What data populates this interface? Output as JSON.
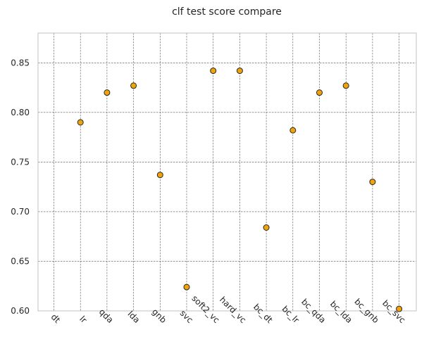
{
  "chart_data": {
    "type": "scatter",
    "title": "clf test score compare",
    "xlabel": "",
    "ylabel": "",
    "categories": [
      "dt",
      "lr",
      "qda",
      "lda",
      "gnb",
      "svc",
      "soft2_vc",
      "hard_vc",
      "bc_dt",
      "bc_lr",
      "bc_qda",
      "bc_lda",
      "bc_gnb",
      "bc_svc"
    ],
    "series": [
      {
        "values": [
          null,
          0.79,
          0.82,
          0.827,
          0.737,
          0.624,
          0.842,
          0.842,
          0.684,
          0.782,
          0.82,
          0.827,
          0.73,
          0.602
        ]
      }
    ],
    "ylim": [
      0.6,
      0.88
    ],
    "yticks": [
      "0.60",
      "0.65",
      "0.70",
      "0.75",
      "0.80",
      "0.85"
    ],
    "grid": true,
    "point_color": "#f0a30a"
  }
}
